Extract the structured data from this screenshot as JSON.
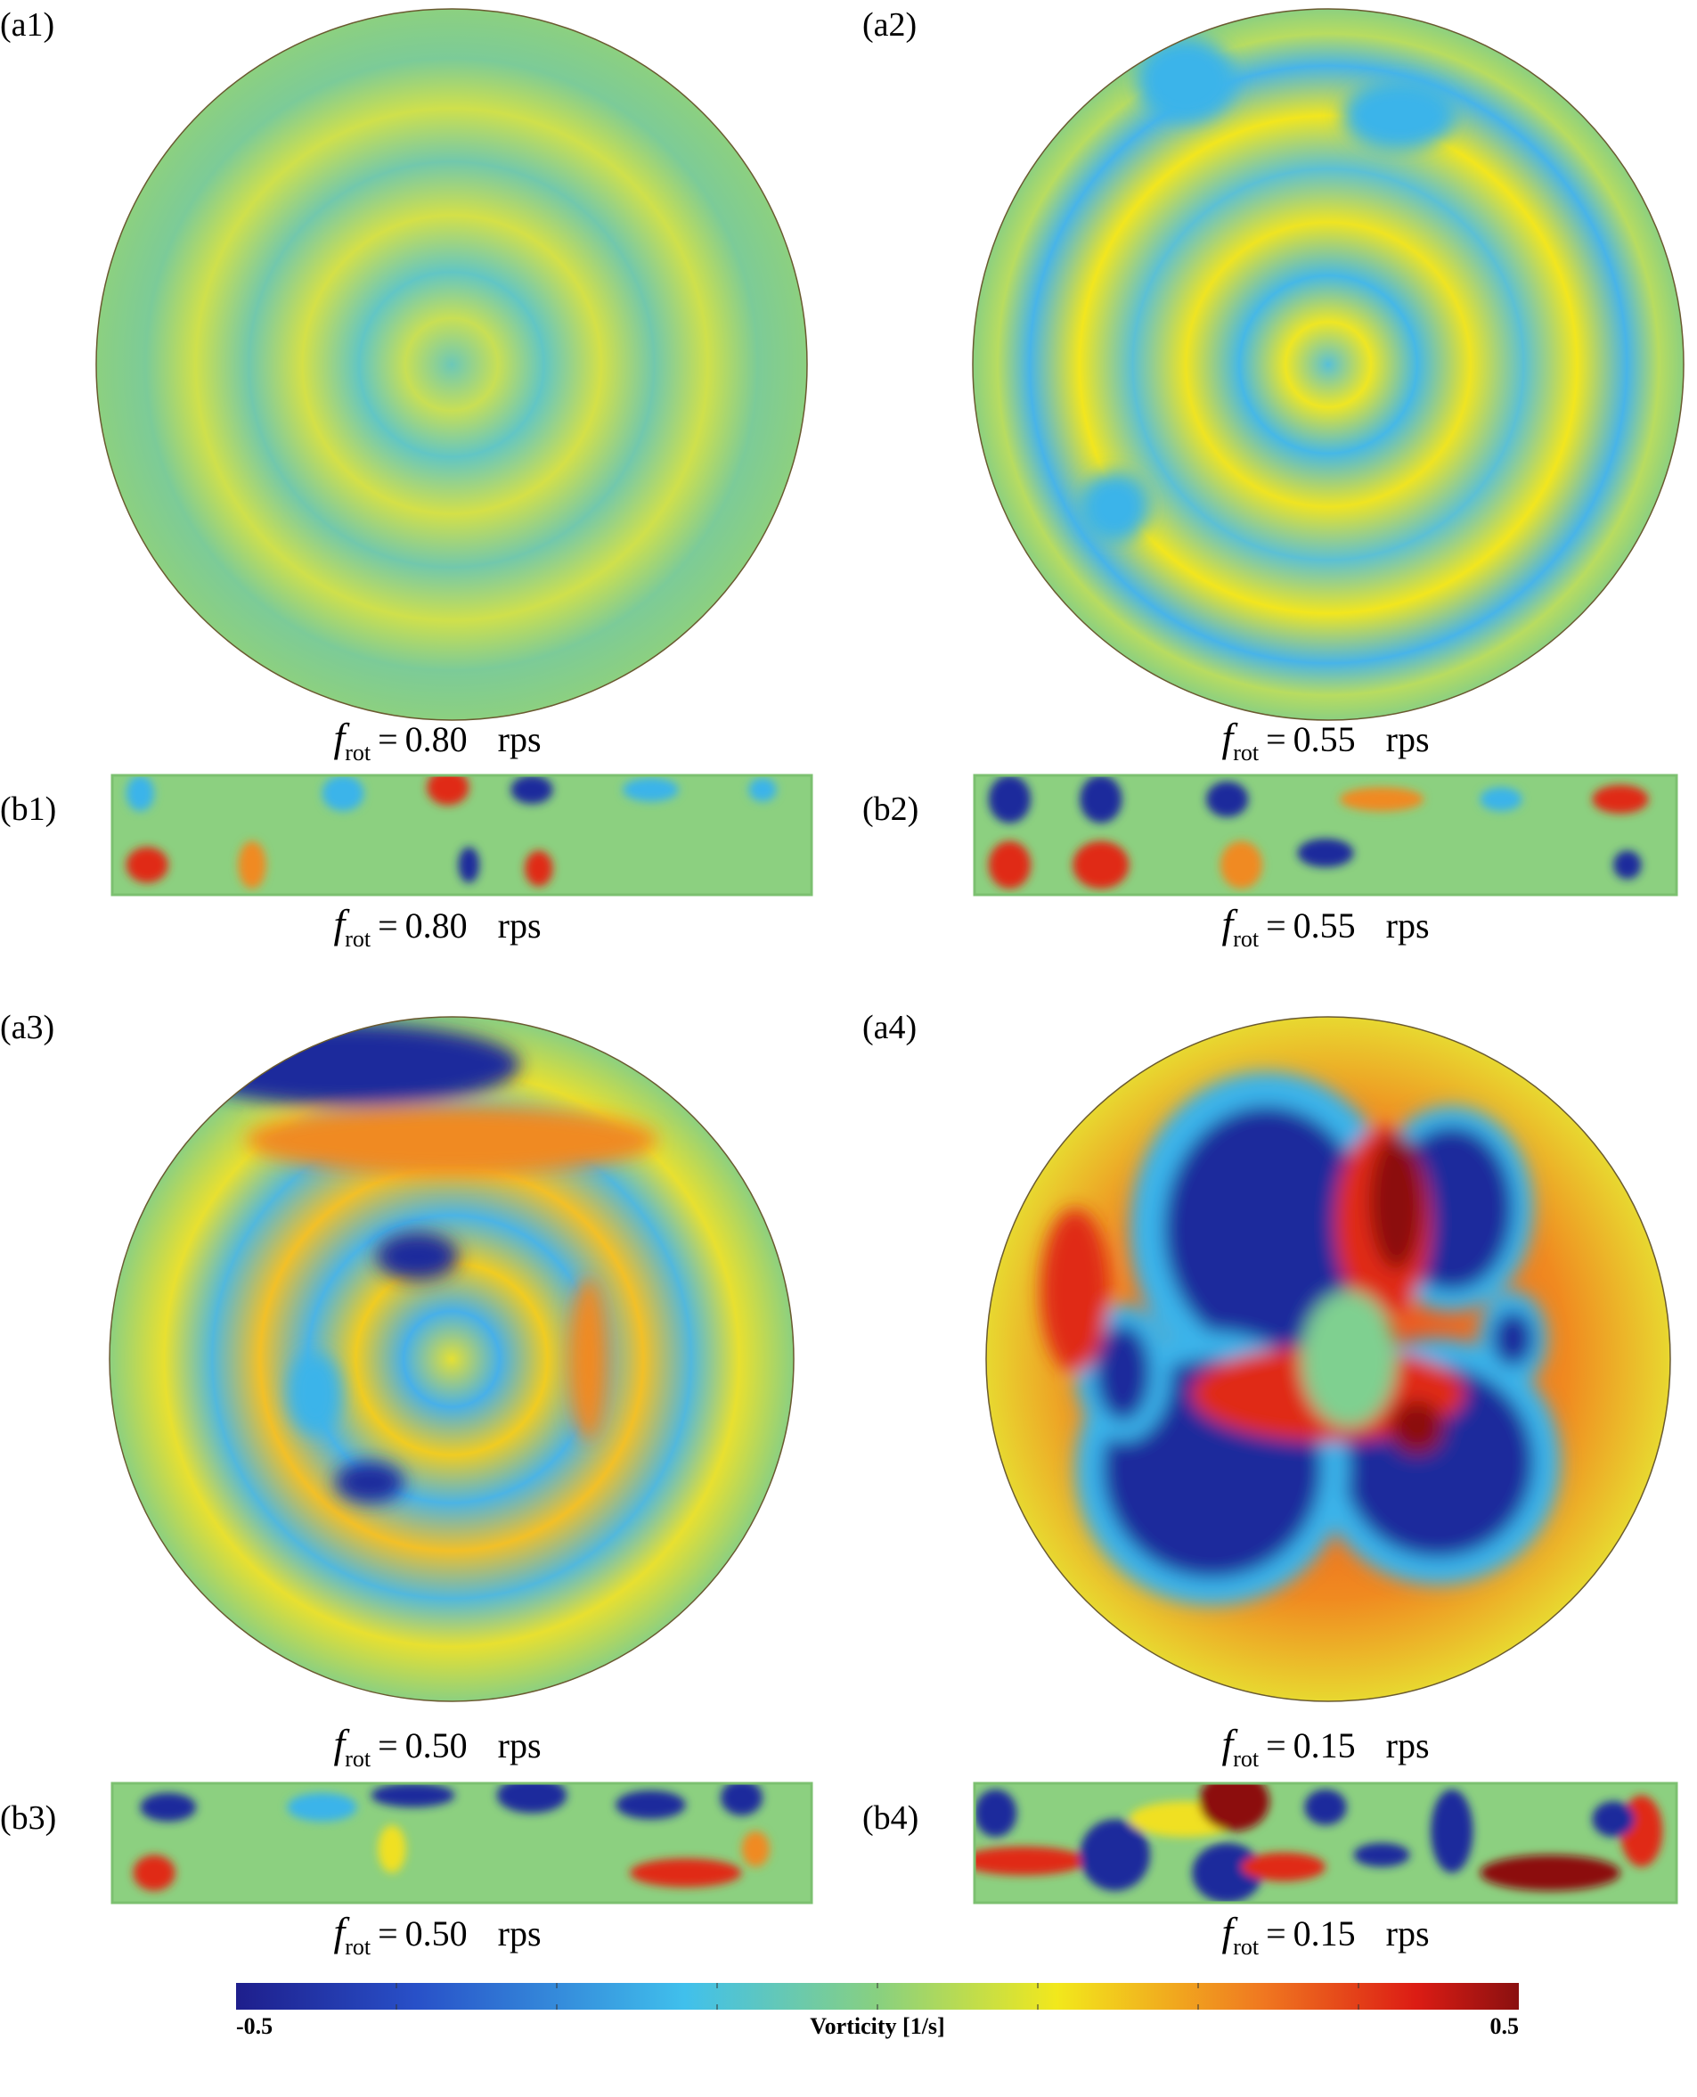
{
  "panels": [
    {
      "label": "(a1)",
      "caption": {
        "symbol": "f",
        "subscript": "rot",
        "relation": "=",
        "value": "0.80",
        "unit": "rps"
      }
    },
    {
      "label": "(a2)",
      "caption": {
        "symbol": "f",
        "subscript": "rot",
        "relation": "=",
        "value": "0.55",
        "unit": "rps"
      }
    },
    {
      "label": "(b1)",
      "caption": {
        "symbol": "f",
        "subscript": "rot",
        "relation": "=",
        "value": "0.80",
        "unit": "rps"
      }
    },
    {
      "label": "(b2)",
      "caption": {
        "symbol": "f",
        "subscript": "rot",
        "relation": "=",
        "value": "0.55",
        "unit": "rps"
      }
    },
    {
      "label": "(a3)",
      "caption": {
        "symbol": "f",
        "subscript": "rot",
        "relation": "=",
        "value": "0.50",
        "unit": "rps"
      }
    },
    {
      "label": "(a4)",
      "caption": {
        "symbol": "f",
        "subscript": "rot",
        "relation": "=",
        "value": "0.15",
        "unit": "rps"
      }
    },
    {
      "label": "(b3)",
      "caption": {
        "symbol": "f",
        "subscript": "rot",
        "relation": "=",
        "value": "0.50",
        "unit": "rps"
      }
    },
    {
      "label": "(b4)",
      "caption": {
        "symbol": "f",
        "subscript": "rot",
        "relation": "=",
        "value": "0.15",
        "unit": "rps"
      }
    }
  ],
  "colorbar": {
    "min_label": "-0.5",
    "title": "Vorticity [1/s]",
    "max_label": "0.5"
  }
}
